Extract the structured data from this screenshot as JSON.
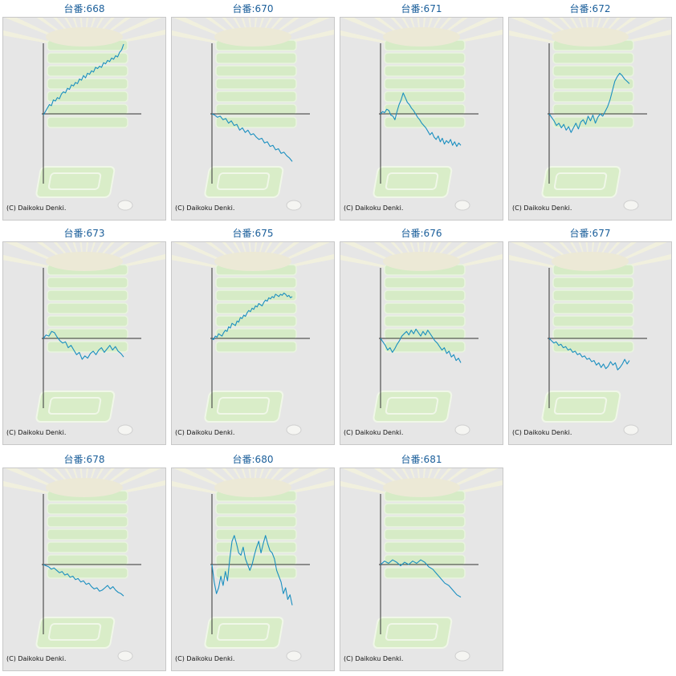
{
  "copyright": "(C) Daikoku Denki.",
  "colors": {
    "line": "#1a8fc0",
    "title": "#1a5e9a",
    "panel_bg": "#e6e6e6",
    "axis": "#333333",
    "art": "#d8ecc8"
  },
  "chart_data": [
    {
      "type": "line",
      "title": "台番:668",
      "values": [
        -1,
        2,
        5,
        8,
        7,
        12,
        11,
        14,
        13,
        17,
        19,
        18,
        22,
        21,
        25,
        24,
        27,
        26,
        30,
        29,
        33,
        31,
        35,
        34,
        37,
        36,
        40,
        39,
        41,
        40,
        44,
        43,
        46,
        45,
        48,
        47,
        50,
        49,
        53,
        55,
        60
      ]
    },
    {
      "type": "line",
      "title": "台番:670",
      "values": [
        0,
        -1,
        -3,
        -2,
        -5,
        -4,
        -8,
        -6,
        -10,
        -9,
        -14,
        -12,
        -16,
        -14,
        -18,
        -17,
        -20,
        -22,
        -21,
        -25,
        -24,
        -28,
        -27,
        -31,
        -30,
        -34,
        -33,
        -36,
        -38,
        -41
      ]
    },
    {
      "type": "line",
      "title": "台番:671",
      "values": [
        0,
        2,
        1,
        4,
        3,
        -1,
        -2,
        -5,
        2,
        8,
        12,
        18,
        14,
        10,
        8,
        5,
        3,
        0,
        -3,
        -5,
        -8,
        -10,
        -12,
        -15,
        -18,
        -16,
        -20,
        -22,
        -19,
        -24,
        -21,
        -26,
        -23,
        -25,
        -22,
        -27,
        -24,
        -28,
        -25,
        -27
      ]
    },
    {
      "type": "line",
      "title": "台番:672",
      "values": [
        0,
        -3,
        -6,
        -10,
        -8,
        -12,
        -9,
        -14,
        -11,
        -16,
        -12,
        -8,
        -13,
        -7,
        -5,
        -9,
        -2,
        -6,
        -1,
        -8,
        -3,
        0,
        -2,
        2,
        6,
        12,
        20,
        28,
        32,
        35,
        33,
        30,
        28,
        26
      ]
    },
    {
      "type": "line",
      "title": "台番:673",
      "values": [
        0,
        3,
        2,
        6,
        5,
        1,
        -2,
        -4,
        -3,
        -8,
        -6,
        -10,
        -14,
        -12,
        -18,
        -15,
        -17,
        -13,
        -11,
        -14,
        -10,
        -8,
        -12,
        -9,
        -6,
        -10,
        -7,
        -11,
        -13,
        -16
      ]
    },
    {
      "type": "line",
      "title": "台番:675",
      "values": [
        0,
        -1,
        2,
        1,
        4,
        3,
        2,
        5,
        7,
        6,
        10,
        9,
        13,
        12,
        11,
        15,
        14,
        18,
        17,
        20,
        19,
        22,
        24,
        23,
        26,
        25,
        28,
        27,
        30,
        29,
        28,
        31,
        33,
        32,
        35,
        34,
        36,
        35,
        38,
        37,
        36,
        38,
        37,
        39,
        38,
        36,
        37,
        35,
        36
      ]
    },
    {
      "type": "line",
      "title": "台番:676",
      "values": [
        0,
        -3,
        -6,
        -10,
        -8,
        -12,
        -9,
        -5,
        -2,
        2,
        4,
        6,
        3,
        7,
        4,
        8,
        5,
        2,
        6,
        3,
        7,
        4,
        1,
        -2,
        -4,
        -7,
        -10,
        -8,
        -13,
        -11,
        -16,
        -14,
        -19,
        -17,
        -21
      ]
    },
    {
      "type": "line",
      "title": "台番:677",
      "values": [
        0,
        -2,
        -4,
        -3,
        -6,
        -5,
        -8,
        -7,
        -10,
        -9,
        -12,
        -11,
        -14,
        -13,
        -16,
        -15,
        -18,
        -17,
        -20,
        -19,
        -23,
        -21,
        -25,
        -22,
        -26,
        -24,
        -20,
        -23,
        -21,
        -27,
        -25,
        -22,
        -18,
        -22,
        -19
      ]
    },
    {
      "type": "line",
      "title": "台番:678",
      "values": [
        0,
        -1,
        -2,
        -4,
        -3,
        -5,
        -7,
        -6,
        -9,
        -8,
        -11,
        -10,
        -13,
        -12,
        -15,
        -14,
        -17,
        -16,
        -19,
        -21,
        -20,
        -23,
        -22,
        -20,
        -18,
        -21,
        -19,
        -22,
        -24,
        -25,
        -27
      ]
    },
    {
      "type": "line",
      "title": "台番:680",
      "values": [
        0,
        -15,
        -25,
        -20,
        -10,
        -18,
        -6,
        -14,
        5,
        20,
        25,
        18,
        10,
        8,
        15,
        5,
        0,
        -5,
        0,
        8,
        15,
        20,
        10,
        18,
        25,
        18,
        12,
        10,
        5,
        -5,
        -10,
        -15,
        -25,
        -20,
        -30,
        -26,
        -35
      ]
    },
    {
      "type": "line",
      "title": "台番:681",
      "values": [
        0,
        3,
        1,
        4,
        2,
        -1,
        2,
        0,
        3,
        1,
        4,
        2,
        -2,
        -4,
        -8,
        -12,
        -16,
        -18,
        -22,
        -26,
        -28
      ]
    }
  ]
}
